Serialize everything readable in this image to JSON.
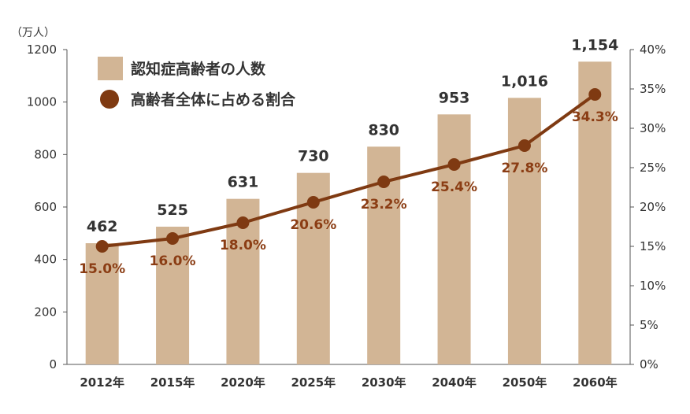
{
  "chart_data": {
    "type": "bar",
    "categories": [
      "2012年",
      "2015年",
      "2020年",
      "2025年",
      "2030年",
      "2040年",
      "2050年",
      "2060年"
    ],
    "y_unit": "（万人）",
    "ylim": [
      0,
      1200
    ],
    "yticks": [
      "0",
      "200",
      "400",
      "600",
      "800",
      "1000",
      "1200"
    ],
    "y2lim": [
      0,
      40
    ],
    "y2ticks": [
      "0%",
      "5%",
      "10%",
      "15%",
      "20%",
      "25%",
      "30%",
      "35%",
      "40%"
    ],
    "legend_position": "top-left",
    "grid": false,
    "series": [
      {
        "name": "認知症高齢者の人数",
        "type": "bar",
        "axis": "left",
        "values": [
          462,
          525,
          631,
          730,
          830,
          953,
          1016,
          1154
        ],
        "labels": [
          "462",
          "525",
          "631",
          "730",
          "830",
          "953",
          "1,016",
          "1,154"
        ]
      },
      {
        "name": "高齢者全体に占める割合",
        "type": "line",
        "axis": "right",
        "values": [
          15.0,
          16.0,
          18.0,
          20.6,
          23.2,
          25.4,
          27.8,
          34.3
        ],
        "labels": [
          "15.0%",
          "16.0%",
          "18.0%",
          "20.6%",
          "23.2%",
          "25.4%",
          "27.8%",
          "34.3%"
        ]
      }
    ],
    "colors": {
      "bar": "#d2b595",
      "line": "#7f3a12",
      "pct_label": "#8b3d14",
      "axis": "#555555"
    }
  }
}
